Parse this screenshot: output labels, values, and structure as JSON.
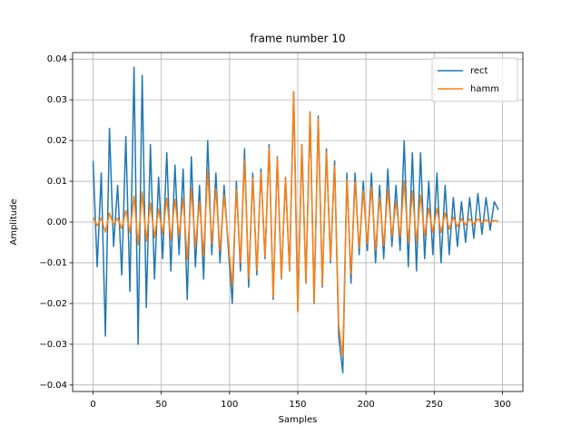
{
  "chart_data": {
    "type": "line",
    "title": "frame number 10",
    "xlabel": "Samples",
    "ylabel": "Amplitude",
    "x": [
      0,
      3,
      6,
      9,
      12,
      15,
      18,
      21,
      24,
      27,
      30,
      33,
      36,
      39,
      42,
      45,
      48,
      51,
      54,
      57,
      60,
      63,
      66,
      69,
      72,
      75,
      78,
      81,
      84,
      87,
      90,
      93,
      96,
      99,
      102,
      105,
      108,
      111,
      114,
      117,
      120,
      123,
      126,
      129,
      132,
      135,
      138,
      141,
      144,
      147,
      150,
      153,
      156,
      159,
      162,
      165,
      168,
      171,
      174,
      177,
      180,
      183,
      186,
      189,
      192,
      195,
      198,
      201,
      204,
      207,
      210,
      213,
      216,
      219,
      222,
      225,
      228,
      231,
      234,
      237,
      240,
      243,
      246,
      249,
      252,
      255,
      258,
      261,
      264,
      267,
      270,
      273,
      276,
      279,
      282,
      285,
      288,
      291,
      294,
      297
    ],
    "series": [
      {
        "name": "rect",
        "color": "#1f77b4",
        "values": [
          0.015,
          -0.011,
          0.012,
          -0.028,
          0.023,
          -0.006,
          0.009,
          -0.013,
          0.021,
          -0.017,
          0.038,
          -0.03,
          0.036,
          -0.021,
          0.019,
          -0.014,
          0.011,
          -0.009,
          0.017,
          -0.012,
          0.014,
          -0.008,
          0.013,
          -0.019,
          0.016,
          -0.011,
          0.009,
          -0.014,
          0.02,
          -0.008,
          0.012,
          -0.01,
          0.009,
          -0.006,
          -0.02,
          0.01,
          -0.012,
          0.018,
          -0.016,
          0.012,
          -0.013,
          0.013,
          -0.009,
          0.019,
          -0.019,
          0.016,
          -0.014,
          0.011,
          -0.012,
          0.032,
          -0.022,
          0.019,
          -0.015,
          0.027,
          -0.02,
          0.026,
          -0.016,
          0.018,
          -0.01,
          0.015,
          -0.028,
          -0.037,
          0.012,
          -0.015,
          0.012,
          -0.008,
          0.01,
          -0.007,
          0.012,
          -0.01,
          0.009,
          -0.009,
          0.013,
          -0.006,
          0.009,
          -0.007,
          0.02,
          -0.011,
          0.017,
          -0.012,
          0.017,
          -0.009,
          0.01,
          -0.008,
          0.012,
          -0.01,
          0.009,
          -0.008,
          0.006,
          -0.006,
          0.005,
          -0.005,
          0.006,
          -0.004,
          0.007,
          -0.003,
          0.006,
          -0.002,
          0.005,
          0.003
        ]
      },
      {
        "name": "hamm",
        "color": "#ff7f0e",
        "values": [
          0.0012,
          -0.0009,
          0.001,
          -0.0025,
          0.0022,
          -0.0006,
          0.001,
          -0.0016,
          0.0029,
          -0.0026,
          0.0064,
          -0.0056,
          0.0074,
          -0.0047,
          0.0047,
          -0.0038,
          0.0032,
          -0.0029,
          0.0059,
          -0.0045,
          0.0056,
          -0.0034,
          0.0059,
          -0.0092,
          0.0082,
          -0.006,
          0.0051,
          -0.0084,
          0.0126,
          -0.0052,
          0.0082,
          -0.0071,
          0.0066,
          -0.0046,
          -0.0158,
          0.0081,
          -0.01,
          0.0154,
          -0.014,
          0.0108,
          -0.0119,
          0.0121,
          -0.0085,
          0.0182,
          -0.0184,
          0.0157,
          -0.0138,
          0.0109,
          -0.012,
          0.032,
          -0.022,
          0.019,
          -0.0149,
          0.0268,
          -0.0197,
          0.0254,
          -0.0155,
          0.0172,
          -0.0094,
          0.0139,
          -0.0254,
          -0.0329,
          0.0104,
          -0.0128,
          0.0099,
          -0.0064,
          0.0078,
          -0.0053,
          0.0087,
          -0.007,
          0.0061,
          -0.0058,
          0.008,
          -0.0035,
          0.005,
          -0.0037,
          0.0101,
          -0.0052,
          0.0076,
          -0.005,
          0.0066,
          -0.0033,
          0.0034,
          -0.0025,
          0.0034,
          -0.0026,
          0.0022,
          -0.0018,
          0.0012,
          -0.0011,
          0.0008,
          -0.0007,
          0.0008,
          -0.0005,
          0.0008,
          -0.0003,
          0.0006,
          -0.0002,
          0.0004,
          0.0002
        ]
      }
    ],
    "xlim": [
      -15,
      315
    ],
    "xticks": [
      0,
      50,
      100,
      150,
      200,
      250,
      300
    ],
    "ylim": [
      -0.0416,
      0.0416
    ],
    "yticks": [
      0.04,
      0.03,
      0.02,
      0.01,
      {
        "value": 0,
        "label": "0.00"
      },
      {
        "value": -0.01,
        "label": "−0.01"
      },
      {
        "value": -0.02,
        "label": "−0.02"
      },
      {
        "value": -0.03,
        "label": "−0.03"
      },
      {
        "value": -0.04,
        "label": "−0.04"
      }
    ],
    "grid": true,
    "legend": "upper right"
  }
}
